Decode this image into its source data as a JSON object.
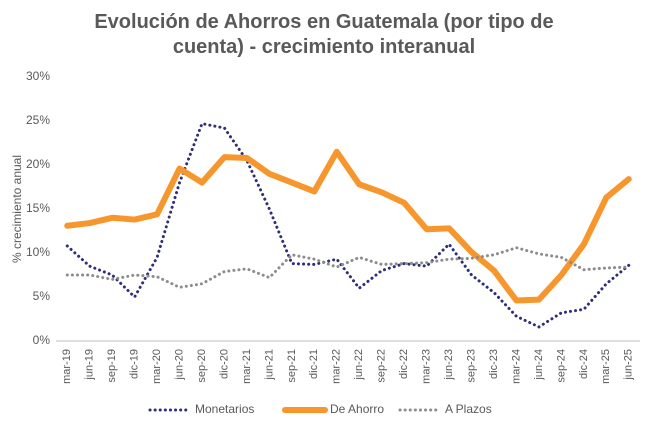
{
  "chart_data": {
    "type": "line",
    "title": "Evolución de Ahorros en Guatemala (por tipo de cuenta) - crecimiento interanual",
    "y_label": "% crecimiento anual",
    "categories": [
      "mar-19",
      "jun-19",
      "sep-19",
      "dic-19",
      "mar-20",
      "jun-20",
      "sep-20",
      "dic-20",
      "mar-21",
      "jun-21",
      "sep-21",
      "dic-21",
      "mar-22",
      "jun-22",
      "sep-22",
      "dic-22",
      "mar-23",
      "jun-23",
      "sep-23",
      "dic-23",
      "mar-24",
      "jun-24",
      "sep-24",
      "dic-24",
      "mar-25",
      "jun-25"
    ],
    "series": [
      {
        "name": "Monetarios",
        "color": "#2e2f7a",
        "style": "dotted",
        "values": [
          10.8,
          8.5,
          7.5,
          5.0,
          9.5,
          18.0,
          24.7,
          24.2,
          20.5,
          15.0,
          8.8,
          8.7,
          9.3,
          6.0,
          8.0,
          8.8,
          8.5,
          11.0,
          7.5,
          5.5,
          2.8,
          1.6,
          3.2,
          3.6,
          6.5,
          8.6
        ]
      },
      {
        "name": "De Ahorro",
        "color": "#f7962d",
        "style": "solid",
        "values": [
          13.1,
          13.4,
          14.0,
          13.8,
          14.4,
          19.6,
          18.0,
          20.9,
          20.8,
          19.0,
          18.0,
          17.0,
          21.5,
          17.8,
          16.9,
          15.7,
          12.7,
          12.8,
          10.1,
          8.0,
          4.6,
          4.7,
          7.5,
          11.0,
          16.3,
          18.4
        ]
      },
      {
        "name": "A Plazos",
        "color": "#8c8c8c",
        "style": "dotted",
        "values": [
          7.5,
          7.5,
          7.0,
          7.5,
          7.3,
          6.1,
          6.5,
          7.9,
          8.2,
          7.2,
          9.8,
          9.3,
          8.4,
          9.5,
          8.7,
          8.8,
          8.9,
          9.3,
          9.4,
          9.8,
          10.6,
          9.9,
          9.5,
          8.1,
          8.3,
          8.4
        ]
      }
    ],
    "ylim": [
      0,
      30
    ],
    "yticks": [
      {
        "value": 0,
        "label": "0%"
      },
      {
        "value": 5,
        "label": "5%"
      },
      {
        "value": 10,
        "label": "10%"
      },
      {
        "value": 15,
        "label": "15%"
      },
      {
        "value": 20,
        "label": "20%"
      },
      {
        "value": 25,
        "label": "25%"
      },
      {
        "value": 30,
        "label": "30%"
      }
    ],
    "grid": false,
    "legend": "bottom"
  }
}
